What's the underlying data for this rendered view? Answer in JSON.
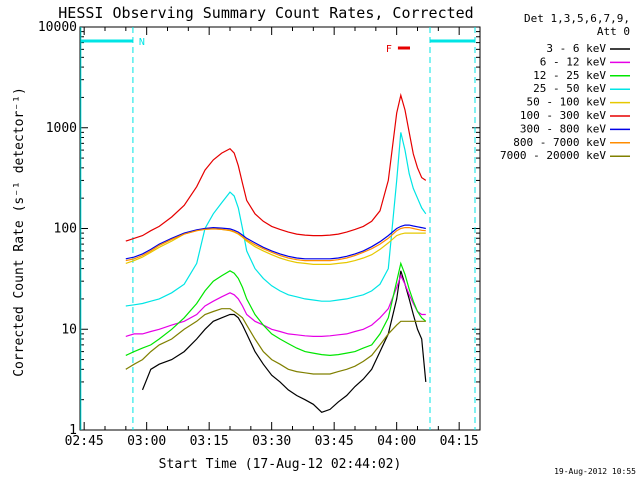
{
  "chart_data": {
    "type": "line",
    "title": "HESSI Observing Summary Count Rates, Corrected",
    "xlabel": "Start Time (17-Aug-12 02:44:02)",
    "ylabel": "Corrected Count Rate (s⁻¹ detector⁻¹)",
    "ylog": true,
    "ylim": [
      1,
      10000
    ],
    "xlim_minutes": [
      0,
      96
    ],
    "x_ticks": [
      {
        "label": "02:45",
        "min": 1
      },
      {
        "label": "03:00",
        "min": 16
      },
      {
        "label": "03:15",
        "min": 31
      },
      {
        "label": "03:30",
        "min": 46
      },
      {
        "label": "03:45",
        "min": 61
      },
      {
        "label": "04:00",
        "min": 76
      },
      {
        "label": "04:15",
        "min": 91
      }
    ],
    "y_ticks": [
      {
        "label": "1",
        "value": 1
      },
      {
        "label": "10",
        "value": 10
      },
      {
        "label": "100",
        "value": 100
      },
      {
        "label": "1000",
        "value": 1000
      },
      {
        "label": "10000",
        "value": 10000
      }
    ],
    "legend_header": [
      "Det 1,3,5,6,7,9,",
      "Att 0"
    ],
    "legend_placement": "right",
    "flags": {
      "night_label": "N",
      "flare_label": "F",
      "night_color": "#00e5e5",
      "flare_color": "#e60000"
    },
    "series": [
      {
        "name": "3 - 6 keV",
        "color": "#000000",
        "x": [
          11,
          13,
          15,
          17,
          19,
          22,
          25,
          28,
          30,
          32,
          34,
          36,
          37,
          38,
          39,
          40,
          42,
          44,
          46,
          48,
          50,
          52,
          54,
          56,
          58,
          60,
          62,
          64,
          66,
          68,
          70,
          72,
          74,
          76,
          77,
          78,
          79,
          80,
          81,
          82,
          83
        ],
        "y": [
          null,
          null,
          2.5,
          4,
          4.5,
          5,
          6,
          8,
          10,
          12,
          13,
          14,
          14,
          13,
          11,
          9,
          6,
          4.5,
          3.5,
          3,
          2.5,
          2.2,
          2,
          1.8,
          1.5,
          1.6,
          1.9,
          2.2,
          2.7,
          3.2,
          4,
          6,
          9,
          20,
          38,
          28,
          20,
          14,
          10,
          8,
          3
        ]
      },
      {
        "name": "6 - 12 keV",
        "color": "#e600e6",
        "x": [
          11,
          13,
          15,
          17,
          19,
          22,
          25,
          28,
          30,
          32,
          34,
          36,
          37,
          38,
          39,
          40,
          42,
          44,
          46,
          48,
          50,
          52,
          54,
          56,
          58,
          60,
          62,
          64,
          66,
          68,
          70,
          72,
          74,
          76,
          77,
          78,
          79,
          80,
          81,
          82,
          83
        ],
        "y": [
          8.5,
          9,
          9,
          9.5,
          10,
          11,
          12,
          14,
          17,
          19,
          21,
          23,
          22,
          20,
          17,
          14,
          12,
          11,
          10,
          9.5,
          9,
          8.8,
          8.6,
          8.5,
          8.5,
          8.6,
          8.8,
          9,
          9.5,
          10,
          11,
          13,
          16,
          26,
          34,
          28,
          22,
          18,
          15,
          14,
          14
        ]
      },
      {
        "name": "12 - 25 keV",
        "color": "#00e600",
        "x": [
          11,
          13,
          15,
          17,
          19,
          22,
          25,
          28,
          30,
          32,
          34,
          36,
          37,
          38,
          39,
          40,
          42,
          44,
          46,
          48,
          50,
          52,
          54,
          56,
          58,
          60,
          62,
          64,
          66,
          68,
          70,
          72,
          74,
          76,
          77,
          78,
          79,
          80,
          81,
          82,
          83
        ],
        "y": [
          5.5,
          6,
          6.5,
          7,
          8,
          10,
          13,
          18,
          24,
          30,
          34,
          38,
          36,
          32,
          26,
          20,
          14,
          11,
          9,
          8,
          7.2,
          6.5,
          6,
          5.8,
          5.6,
          5.5,
          5.6,
          5.8,
          6,
          6.5,
          7,
          9,
          13,
          30,
          45,
          35,
          25,
          19,
          15,
          13,
          12
        ]
      },
      {
        "name": "25 - 50 keV",
        "color": "#00e5e5",
        "x": [
          11,
          13,
          15,
          17,
          19,
          22,
          25,
          28,
          30,
          32,
          34,
          36,
          37,
          38,
          39,
          40,
          42,
          44,
          46,
          48,
          50,
          52,
          54,
          56,
          58,
          60,
          62,
          64,
          66,
          68,
          70,
          72,
          74,
          76,
          77,
          78,
          79,
          80,
          81,
          82,
          83
        ],
        "y": [
          17,
          17.5,
          18,
          19,
          20,
          23,
          28,
          45,
          100,
          140,
          180,
          230,
          210,
          160,
          100,
          60,
          40,
          32,
          27,
          24,
          22,
          21,
          20,
          19.5,
          19,
          19,
          19.5,
          20,
          21,
          22,
          24,
          28,
          40,
          300,
          900,
          600,
          350,
          250,
          200,
          160,
          140
        ]
      },
      {
        "name": "50 - 100 keV",
        "color": "#e6c800",
        "x": [
          11,
          13,
          15,
          17,
          19,
          22,
          25,
          28,
          30,
          32,
          34,
          36,
          37,
          38,
          39,
          40,
          42,
          44,
          46,
          48,
          50,
          52,
          54,
          56,
          58,
          60,
          62,
          64,
          66,
          68,
          70,
          72,
          74,
          76,
          77,
          78,
          79,
          80,
          81,
          82,
          83
        ],
        "y": [
          45,
          48,
          52,
          58,
          65,
          75,
          88,
          95,
          100,
          100,
          98,
          95,
          92,
          88,
          82,
          75,
          66,
          60,
          55,
          51,
          48,
          46,
          45,
          44,
          44,
          44,
          45,
          46,
          48,
          51,
          55,
          62,
          72,
          85,
          88,
          90,
          90,
          90,
          90,
          90,
          90
        ]
      },
      {
        "name": "100 - 300 keV",
        "color": "#e60000",
        "x": [
          11,
          13,
          15,
          17,
          19,
          22,
          25,
          28,
          30,
          32,
          34,
          36,
          37,
          38,
          39,
          40,
          42,
          44,
          46,
          48,
          50,
          52,
          54,
          56,
          58,
          60,
          62,
          64,
          66,
          68,
          70,
          72,
          74,
          76,
          77,
          78,
          79,
          80,
          81,
          82,
          83
        ],
        "y": [
          75,
          80,
          85,
          95,
          105,
          130,
          170,
          260,
          380,
          480,
          560,
          620,
          560,
          420,
          280,
          190,
          140,
          118,
          105,
          98,
          92,
          88,
          86,
          85,
          85,
          86,
          88,
          92,
          98,
          105,
          118,
          150,
          300,
          1400,
          2100,
          1500,
          900,
          550,
          400,
          320,
          300
        ]
      },
      {
        "name": "300 - 800 keV",
        "color": "#0000e6",
        "x": [
          11,
          13,
          15,
          17,
          19,
          22,
          25,
          28,
          30,
          32,
          34,
          36,
          37,
          38,
          39,
          40,
          42,
          44,
          46,
          48,
          50,
          52,
          54,
          56,
          58,
          60,
          62,
          64,
          66,
          68,
          70,
          72,
          74,
          76,
          77,
          78,
          79,
          80,
          81,
          82,
          83
        ],
        "y": [
          50,
          52,
          56,
          62,
          70,
          80,
          90,
          97,
          100,
          102,
          101,
          99,
          96,
          92,
          86,
          80,
          72,
          65,
          60,
          56,
          53,
          51,
          50,
          50,
          50,
          50,
          51,
          53,
          56,
          60,
          66,
          74,
          85,
          100,
          105,
          108,
          108,
          106,
          104,
          102,
          100
        ]
      },
      {
        "name": "800 - 7000 keV",
        "color": "#ff8c00",
        "x": [
          11,
          13,
          15,
          17,
          19,
          22,
          25,
          28,
          30,
          32,
          34,
          36,
          37,
          38,
          39,
          40,
          42,
          44,
          46,
          48,
          50,
          52,
          54,
          56,
          58,
          60,
          62,
          64,
          66,
          68,
          70,
          72,
          74,
          76,
          77,
          78,
          79,
          80,
          81,
          82,
          83
        ],
        "y": [
          48,
          50,
          54,
          60,
          68,
          78,
          88,
          95,
          98,
          99,
          98,
          96,
          93,
          89,
          83,
          77,
          69,
          63,
          58,
          54,
          51,
          49,
          48,
          48,
          48,
          48,
          49,
          51,
          54,
          58,
          63,
          70,
          80,
          95,
          100,
          102,
          102,
          100,
          98,
          96,
          95
        ]
      },
      {
        "name": "7000 - 20000 keV",
        "color": "#808000",
        "x": [
          11,
          13,
          15,
          17,
          19,
          22,
          25,
          28,
          30,
          32,
          34,
          36,
          37,
          38,
          39,
          40,
          42,
          44,
          46,
          48,
          50,
          52,
          54,
          56,
          58,
          60,
          62,
          64,
          66,
          68,
          70,
          72,
          74,
          76,
          77,
          78,
          79,
          80,
          81,
          82,
          83
        ],
        "y": [
          4,
          4.5,
          5,
          6,
          7,
          8,
          10,
          12,
          14,
          15,
          16,
          16,
          15,
          14,
          13,
          11,
          8,
          6,
          5,
          4.5,
          4,
          3.8,
          3.7,
          3.6,
          3.6,
          3.6,
          3.8,
          4,
          4.3,
          4.8,
          5.5,
          7,
          9,
          11,
          12,
          12,
          12,
          12,
          12,
          12,
          12
        ]
      }
    ]
  },
  "footer": {
    "timestamp": "19-Aug-2012 10:55"
  }
}
